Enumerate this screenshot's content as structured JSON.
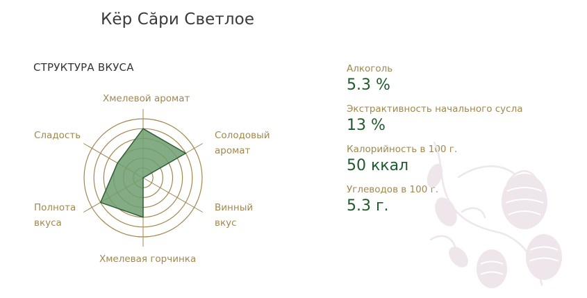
{
  "product": {
    "title": "Кёр Сăри Светлое"
  },
  "taste_structure": {
    "heading": "СТРУКТУРА ВКУСА",
    "axes": [
      {
        "label": "Хмелевой аромат",
        "value": 5
      },
      {
        "label": "Солодовый аромат",
        "value": 5
      },
      {
        "label": "Винный вкус",
        "value": 0
      },
      {
        "label": "Хмелевая горчинка",
        "value": 4
      },
      {
        "label": "Полнота вкуса",
        "value": 5
      },
      {
        "label": "Сладость",
        "value": 3
      }
    ],
    "scale_max": 6,
    "colors": {
      "fill": "#6f9e6f",
      "stroke": "#2d5e33",
      "grid": "#a0874f"
    }
  },
  "stats": [
    {
      "label": "Алкоголь",
      "value": "5.3 %"
    },
    {
      "label": "Экстрактивность начального сусла",
      "value": "13 %"
    },
    {
      "label": "Калорийность в 100 г.",
      "value": "50 ккал"
    },
    {
      "label": "Углеводов в 100 г.",
      "value": "5.3 г."
    }
  ],
  "decoration": {
    "icon": "hops-watermark-icon"
  }
}
